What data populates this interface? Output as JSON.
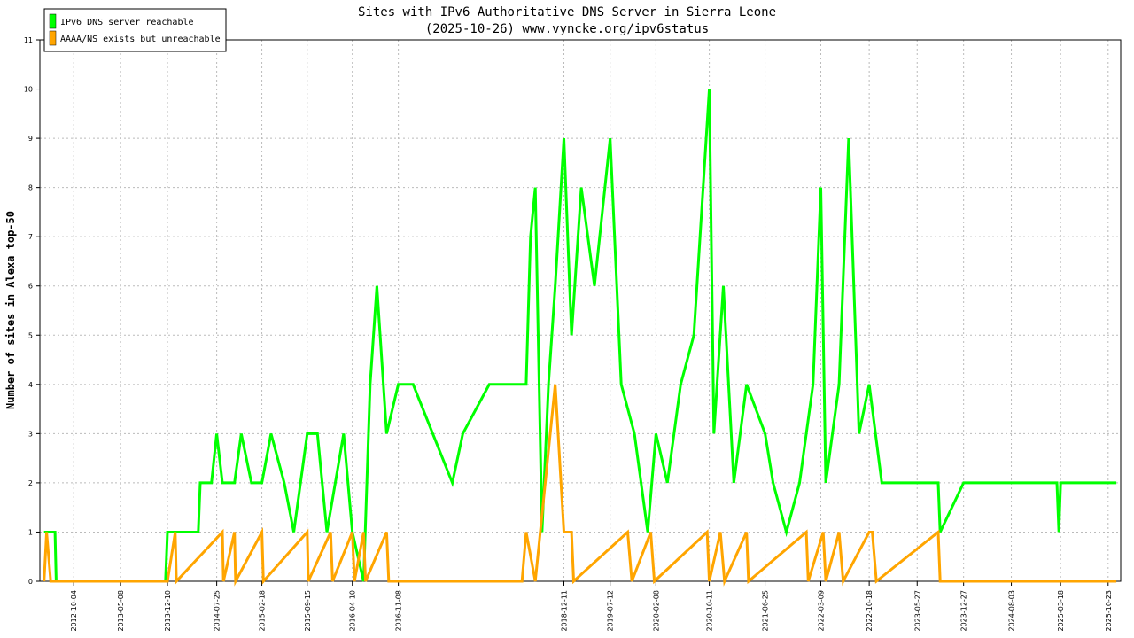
{
  "chart_data": {
    "type": "line",
    "title": "Sites with IPv6 Authoritative DNS Server in Sierra Leone",
    "subtitle": "(2025-10-26) www.vyncke.org/ipv6status",
    "ylabel": "Number of sites in Alexa top-50",
    "xlabel": "",
    "ylim": [
      0,
      11
    ],
    "yticks": [
      0,
      1,
      2,
      3,
      4,
      5,
      6,
      7,
      8,
      9,
      10,
      11
    ],
    "xlim": [
      "2012-05-01",
      "2025-12-20"
    ],
    "xticks": [
      "2012-10-04",
      "2013-05-08",
      "2013-12-10",
      "2014-07-25",
      "2015-02-18",
      "2015-09-15",
      "2016-04-10",
      "2016-11-08",
      "2018-12-11",
      "2019-07-12",
      "2020-02-08",
      "2020-10-11",
      "2021-06-25",
      "2022-03-09",
      "2022-10-18",
      "2023-05-27",
      "2023-12-27",
      "2024-08-03",
      "2025-03-18",
      "2025-10-23"
    ],
    "grid": true,
    "legend_position": "top-left",
    "colors": {
      "reachable": "#00ff00",
      "unreachable": "#ffa500",
      "grid": "#bbbbbb"
    },
    "series": [
      {
        "name": "IPv6 DNS server reachable",
        "color": "#00ff00",
        "x": [
          "2012-05-20",
          "2012-06-20",
          "2012-07-10",
          "2012-07-15",
          "2013-12-01",
          "2013-12-10",
          "2014-05-01",
          "2014-05-10",
          "2014-07-01",
          "2014-07-25",
          "2014-08-20",
          "2014-09-01",
          "2014-10-15",
          "2014-11-15",
          "2015-01-01",
          "2015-02-18",
          "2015-04-01",
          "2015-06-01",
          "2015-07-15",
          "2015-09-15",
          "2015-11-01",
          "2015-12-15",
          "2016-03-01",
          "2016-04-10",
          "2016-06-01",
          "2016-07-01",
          "2016-08-01",
          "2016-09-15",
          "2016-11-08",
          "2017-01-15",
          "2017-07-15",
          "2017-09-01",
          "2018-01-01",
          "2018-06-01",
          "2018-06-20",
          "2018-07-10",
          "2018-08-01",
          "2018-09-01",
          "2018-10-01",
          "2018-11-01",
          "2018-12-11",
          "2019-01-15",
          "2019-03-01",
          "2019-05-01",
          "2019-07-12",
          "2019-09-01",
          "2019-11-01",
          "2020-01-01",
          "2020-02-08",
          "2020-04-01",
          "2020-06-01",
          "2020-08-01",
          "2020-10-11",
          "2020-11-01",
          "2020-12-15",
          "2021-02-01",
          "2021-04-01",
          "2021-06-25",
          "2021-08-01",
          "2021-10-01",
          "2021-12-01",
          "2022-02-01",
          "2022-03-09",
          "2022-04-01",
          "2022-06-01",
          "2022-07-15",
          "2022-09-01",
          "2022-10-18",
          "2022-12-15",
          "2023-01-01",
          "2023-03-01",
          "2023-05-27",
          "2023-09-01",
          "2023-09-10",
          "2023-12-27",
          "2024-08-03",
          "2025-03-01",
          "2025-03-10",
          "2025-03-18",
          "2025-10-23",
          "2025-11-30"
        ],
        "values": [
          1,
          1,
          1,
          0,
          0,
          1,
          1,
          2,
          2,
          3,
          2,
          2,
          2,
          3,
          2,
          2,
          3,
          2,
          1,
          3,
          3,
          1,
          3,
          1,
          0,
          4,
          6,
          3,
          4,
          4,
          2,
          3,
          4,
          4,
          4,
          7,
          8,
          1,
          4,
          6,
          9,
          5,
          8,
          6,
          9,
          4,
          3,
          1,
          3,
          2,
          4,
          5,
          10,
          3,
          6,
          2,
          4,
          3,
          2,
          1,
          2,
          4,
          8,
          2,
          4,
          9,
          3,
          4,
          2,
          2,
          2,
          2,
          2,
          1,
          2,
          2,
          2,
          1,
          2,
          2,
          2
        ]
      },
      {
        "name": "AAAA/NS exists but unreachable",
        "color": "#ffa500",
        "x": [
          "2012-05-20",
          "2012-06-01",
          "2012-06-20",
          "2012-07-15",
          "2013-12-10",
          "2014-01-15",
          "2014-01-20",
          "2014-08-20",
          "2014-08-25",
          "2014-10-15",
          "2014-10-20",
          "2015-02-18",
          "2015-02-25",
          "2015-09-15",
          "2015-09-20",
          "2016-01-01",
          "2016-01-10",
          "2016-04-10",
          "2016-04-20",
          "2016-06-01",
          "2016-06-10",
          "2016-09-15",
          "2016-09-25",
          "2018-06-01",
          "2018-06-20",
          "2018-08-01",
          "2018-11-01",
          "2018-12-11",
          "2019-01-15",
          "2019-01-25",
          "2019-10-01",
          "2019-10-20",
          "2020-01-15",
          "2020-02-01",
          "2020-10-01",
          "2020-10-11",
          "2020-12-01",
          "2020-12-20",
          "2021-04-01",
          "2021-04-10",
          "2022-01-01",
          "2022-01-10",
          "2022-03-20",
          "2022-04-01",
          "2022-06-01",
          "2022-06-20",
          "2022-10-18",
          "2022-11-01",
          "2022-11-20",
          "2023-09-01",
          "2023-09-10",
          "2025-11-30"
        ],
        "values": [
          0,
          1,
          0,
          0,
          0,
          1,
          0,
          1,
          0,
          1,
          0,
          1,
          0,
          1,
          0,
          1,
          0,
          1,
          0,
          1,
          0,
          1,
          0,
          0,
          1,
          0,
          4,
          1,
          1,
          0,
          1,
          0,
          1,
          0,
          1,
          0,
          1,
          0,
          1,
          0,
          1,
          0,
          1,
          0,
          1,
          0,
          1,
          1,
          0,
          1,
          0,
          0
        ]
      }
    ]
  }
}
